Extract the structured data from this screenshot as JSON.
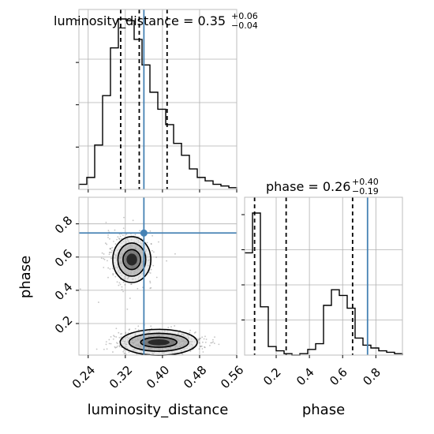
{
  "chart_data": [
    {
      "type": "histogram",
      "panel": "luminosity_distance marginal",
      "title": {
        "prefix": "luminosity_distance = ",
        "value": "0.35",
        "plus": "+0.06",
        "minus": "−0.04"
      },
      "xlim": [
        0.22,
        0.56
      ],
      "xticks": [
        0.24,
        0.32,
        0.4,
        0.48,
        0.56
      ],
      "edges": [
        0.22,
        0.237,
        0.254,
        0.271,
        0.288,
        0.305,
        0.322,
        0.339,
        0.356,
        0.373,
        0.39,
        0.407,
        0.424,
        0.441,
        0.458,
        0.475,
        0.492,
        0.509,
        0.526,
        0.543,
        0.56
      ],
      "counts": [
        0.03,
        0.07,
        0.26,
        0.55,
        0.83,
        1.0,
        0.99,
        0.88,
        0.73,
        0.57,
        0.47,
        0.38,
        0.27,
        0.2,
        0.12,
        0.07,
        0.05,
        0.03,
        0.02,
        0.01
      ],
      "quantiles": [
        0.31,
        0.35,
        0.41
      ],
      "truth": 0.36
    },
    {
      "type": "histogram",
      "panel": "phase marginal",
      "title": {
        "prefix": "phase = ",
        "value": "0.26",
        "plus": "+0.40",
        "minus": "−0.19"
      },
      "xlim": [
        0.01,
        0.96
      ],
      "xticks": [
        0.2,
        0.4,
        0.6,
        0.8
      ],
      "xticklabels": [
        "0.2",
        "0.4",
        "0.6",
        "0.8"
      ],
      "edges": [
        0.01,
        0.0575,
        0.105,
        0.1525,
        0.2,
        0.2475,
        0.295,
        0.3425,
        0.39,
        0.4375,
        0.485,
        0.5325,
        0.58,
        0.6275,
        0.675,
        0.7225,
        0.77,
        0.8175,
        0.865,
        0.9125,
        0.96
      ],
      "counts": [
        0.72,
        1.0,
        0.34,
        0.06,
        0.03,
        0.01,
        0.0,
        0.01,
        0.04,
        0.08,
        0.35,
        0.46,
        0.42,
        0.33,
        0.12,
        0.07,
        0.05,
        0.03,
        0.02,
        0.01
      ],
      "quantiles": [
        0.07,
        0.26,
        0.66
      ],
      "truth": 0.75
    },
    {
      "type": "scatter",
      "panel": "2D density phase vs luminosity_distance",
      "xlabel": "luminosity_distance",
      "ylabel": "phase",
      "xlim": [
        0.22,
        0.56
      ],
      "ylim": [
        0.01,
        0.96
      ],
      "xticks": [
        0.24,
        0.32,
        0.4,
        0.48,
        0.56
      ],
      "xticklabels": [
        "0.24",
        "0.32",
        "0.40",
        "0.48",
        "0.56"
      ],
      "yticks": [
        0.2,
        0.4,
        0.6,
        0.8
      ],
      "yticklabels": [
        "0.2",
        "0.4",
        "0.6",
        "0.8"
      ],
      "clusters": [
        {
          "center": [
            0.33,
            0.59
          ],
          "spread": [
            0.025,
            0.075
          ],
          "points": 500
        },
        {
          "center": [
            0.39,
            0.085
          ],
          "spread": [
            0.045,
            0.035
          ],
          "points": 800
        }
      ],
      "contours": [
        [
          {
            "center": [
              0.334,
              0.585
            ],
            "radii": [
              0.041,
              0.138
            ]
          },
          {
            "center": [
              0.334,
              0.585
            ],
            "radii": [
              0.03,
              0.1
            ]
          },
          {
            "center": [
              0.334,
              0.585
            ],
            "radii": [
              0.019,
              0.06
            ]
          }
        ],
        [
          {
            "center": [
              0.392,
              0.087
            ],
            "radii": [
              0.083,
              0.078
            ]
          },
          {
            "center": [
              0.392,
              0.087
            ],
            "radii": [
              0.064,
              0.054
            ]
          },
          {
            "center": [
              0.392,
              0.087
            ],
            "radii": [
              0.039,
              0.03
            ]
          }
        ]
      ],
      "truth": {
        "x": 0.36,
        "y": 0.745
      }
    }
  ],
  "colors": {
    "truth": "#4682b4",
    "hist": "#000000",
    "points": "#555555"
  }
}
